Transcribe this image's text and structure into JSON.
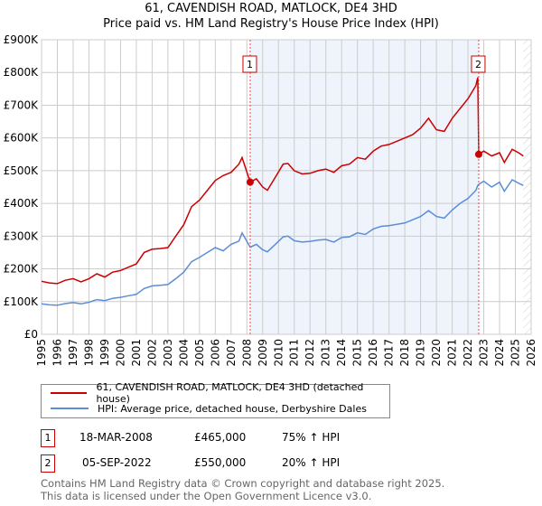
{
  "chart_data": {
    "type": "line",
    "title": "61, CAVENDISH ROAD, MATLOCK, DE4 3HD",
    "subtitle": "Price paid vs. HM Land Registry's House Price Index (HPI)",
    "xlim": [
      1995,
      2026
    ],
    "ylim": [
      0,
      900000
    ],
    "x_ticks": [
      "1995",
      "1996",
      "1997",
      "1998",
      "1999",
      "2000",
      "2001",
      "2002",
      "2003",
      "2004",
      "2005",
      "2006",
      "2007",
      "2008",
      "2009",
      "2010",
      "2011",
      "2012",
      "2013",
      "2014",
      "2015",
      "2016",
      "2017",
      "2018",
      "2019",
      "2020",
      "2021",
      "2022",
      "2023",
      "2024",
      "2025",
      "2026"
    ],
    "y_ticks": [
      {
        "v": 0,
        "l": "£0"
      },
      {
        "v": 100000,
        "l": "£100K"
      },
      {
        "v": 200000,
        "l": "£200K"
      },
      {
        "v": 300000,
        "l": "£300K"
      },
      {
        "v": 400000,
        "l": "£400K"
      },
      {
        "v": 500000,
        "l": "£500K"
      },
      {
        "v": 600000,
        "l": "£600K"
      },
      {
        "v": 700000,
        "l": "£700K"
      },
      {
        "v": 800000,
        "l": "£800K"
      },
      {
        "v": 900000,
        "l": "£900K"
      }
    ],
    "grid": true,
    "series": [
      {
        "name": "61, CAVENDISH ROAD, MATLOCK, DE4 3HD (detached house)",
        "color": "#cc0000",
        "x": [
          1995,
          1995.5,
          1996,
          1996.5,
          1997,
          1997.5,
          1998,
          1998.5,
          1999,
          1999.5,
          2000,
          2000.5,
          2001,
          2001.5,
          2002,
          2002.5,
          2003,
          2003.5,
          2004,
          2004.5,
          2005,
          2005.5,
          2006,
          2006.5,
          2007,
          2007.5,
          2007.7,
          2008.21,
          2008.6,
          2009,
          2009.3,
          2009.8,
          2010.3,
          2010.6,
          2011,
          2011.5,
          2012,
          2012.5,
          2013,
          2013.5,
          2014,
          2014.5,
          2015,
          2015.5,
          2016,
          2016.5,
          2017,
          2017.5,
          2018,
          2018.5,
          2019,
          2019.5,
          2020,
          2020.5,
          2021,
          2021.5,
          2022,
          2022.5,
          2022.62,
          2022.68,
          2023,
          2023.5,
          2024,
          2024.3,
          2024.8,
          2025.2,
          2025.5
        ],
        "y": [
          162000,
          157000,
          155000,
          165000,
          170000,
          160000,
          170000,
          185000,
          175000,
          190000,
          195000,
          205000,
          215000,
          250000,
          260000,
          262000,
          265000,
          300000,
          335000,
          390000,
          410000,
          440000,
          470000,
          485000,
          495000,
          520000,
          540000,
          465000,
          475000,
          450000,
          440000,
          480000,
          520000,
          522000,
          500000,
          490000,
          492000,
          500000,
          505000,
          495000,
          515000,
          520000,
          540000,
          535000,
          560000,
          575000,
          580000,
          590000,
          600000,
          610000,
          630000,
          660000,
          625000,
          620000,
          660000,
          690000,
          720000,
          760000,
          785000,
          550000,
          560000,
          545000,
          555000,
          525000,
          565000,
          555000,
          545000
        ]
      },
      {
        "name": "HPI: Average price, detached house, Derbyshire Dales",
        "color": "#5b8ed6",
        "x": [
          1995,
          1995.5,
          1996,
          1996.5,
          1997,
          1997.5,
          1998,
          1998.5,
          1999,
          1999.5,
          2000,
          2000.5,
          2001,
          2001.5,
          2002,
          2002.5,
          2003,
          2003.5,
          2004,
          2004.5,
          2005,
          2005.5,
          2006,
          2006.5,
          2007,
          2007.5,
          2007.7,
          2008.21,
          2008.6,
          2009,
          2009.3,
          2009.8,
          2010.3,
          2010.6,
          2011,
          2011.5,
          2012,
          2012.5,
          2013,
          2013.5,
          2014,
          2014.5,
          2015,
          2015.5,
          2016,
          2016.5,
          2017,
          2017.5,
          2018,
          2018.5,
          2019,
          2019.5,
          2020,
          2020.5,
          2021,
          2021.5,
          2022,
          2022.5,
          2022.62,
          2022.68,
          2023,
          2023.5,
          2024,
          2024.3,
          2024.8,
          2025.2,
          2025.5
        ],
        "y": [
          93000,
          90000,
          89000,
          94000,
          97000,
          93000,
          98000,
          106000,
          103000,
          110000,
          113000,
          118000,
          122000,
          140000,
          148000,
          150000,
          152000,
          170000,
          190000,
          222000,
          235000,
          250000,
          265000,
          255000,
          275000,
          285000,
          310000,
          266000,
          275000,
          258000,
          252000,
          275000,
          298000,
          300000,
          286000,
          282000,
          284000,
          288000,
          290000,
          282000,
          296000,
          298000,
          310000,
          305000,
          322000,
          330000,
          332000,
          336000,
          340000,
          350000,
          360000,
          378000,
          360000,
          355000,
          380000,
          400000,
          415000,
          440000,
          455000,
          458000,
          468000,
          450000,
          465000,
          437000,
          472000,
          462000,
          455000
        ]
      }
    ],
    "annotations": [
      {
        "label": "1",
        "date": "18-MAR-2008",
        "x": 2008.21,
        "price": "£465,000",
        "price_value": 465000,
        "hpi": "75% ↑ HPI"
      },
      {
        "label": "2",
        "date": "05-SEP-2022",
        "x": 2022.68,
        "price": "£550,000",
        "price_value": 550000,
        "hpi": "20% ↑ HPI"
      }
    ]
  },
  "footer": {
    "line1": "Contains HM Land Registry data © Crown copyright and database right 2025.",
    "line2": "This data is licensed under the Open Government Licence v3.0."
  }
}
